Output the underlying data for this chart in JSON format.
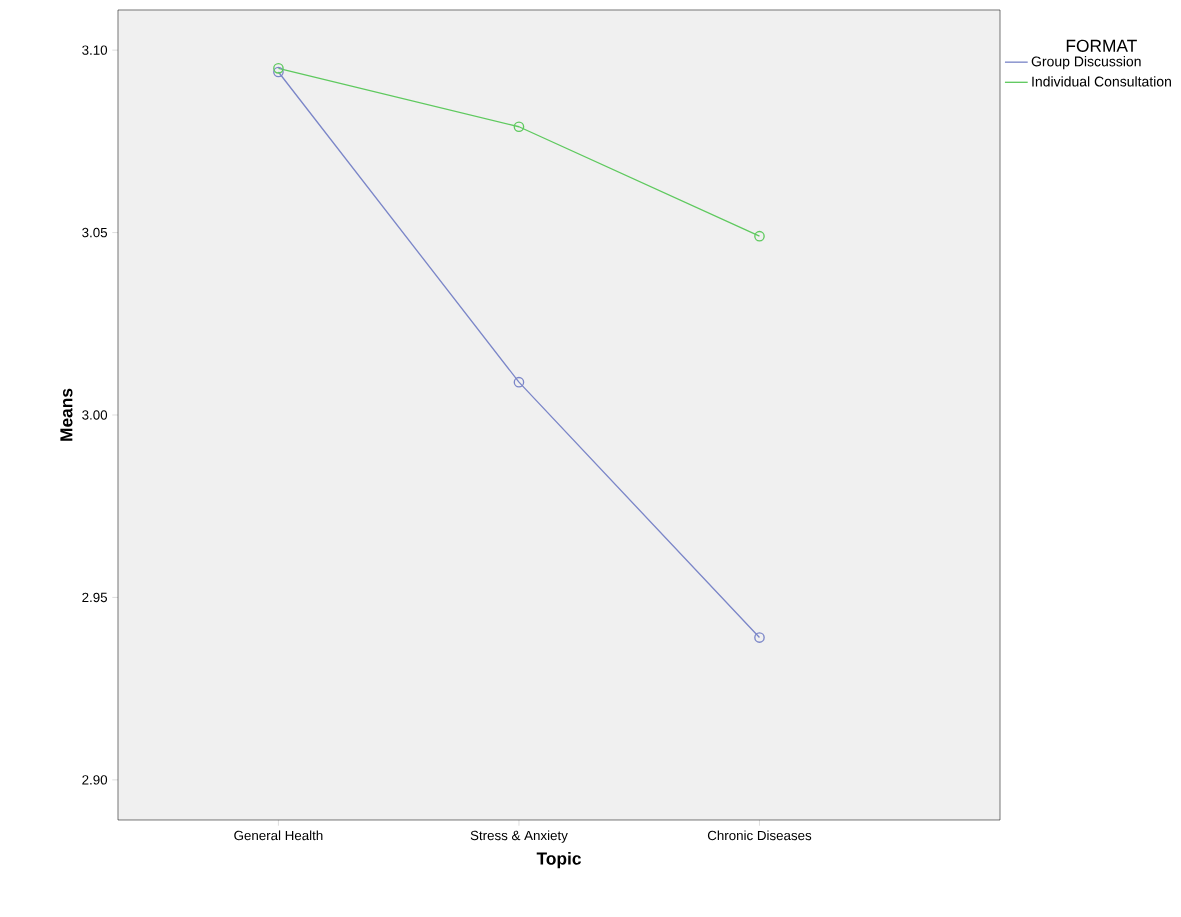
{
  "chart_data": {
    "type": "line",
    "xlabel": "Topic",
    "ylabel": "Means",
    "legend_title": "FORMAT",
    "categories": [
      "General Health",
      "Stress & Anxiety",
      "Chronic Diseases"
    ],
    "series": [
      {
        "name": "Group Discussion",
        "color": "#7b86c8",
        "values": [
          3.094,
          3.009,
          2.939
        ]
      },
      {
        "name": "Individual Consultation",
        "color": "#5ec95e",
        "values": [
          3.095,
          3.079,
          3.049
        ]
      }
    ],
    "ylim": [
      2.889,
      3.111
    ],
    "yticks": [
      {
        "value": 2.9,
        "label": "2.90"
      },
      {
        "value": 2.95,
        "label": "2.95"
      },
      {
        "value": 3.0,
        "label": "3.00"
      },
      {
        "value": 3.05,
        "label": "3.05"
      },
      {
        "value": 3.1,
        "label": "3.10"
      }
    ],
    "marker": "circle",
    "line_style": "solid",
    "grid": false,
    "legend": "top right"
  }
}
